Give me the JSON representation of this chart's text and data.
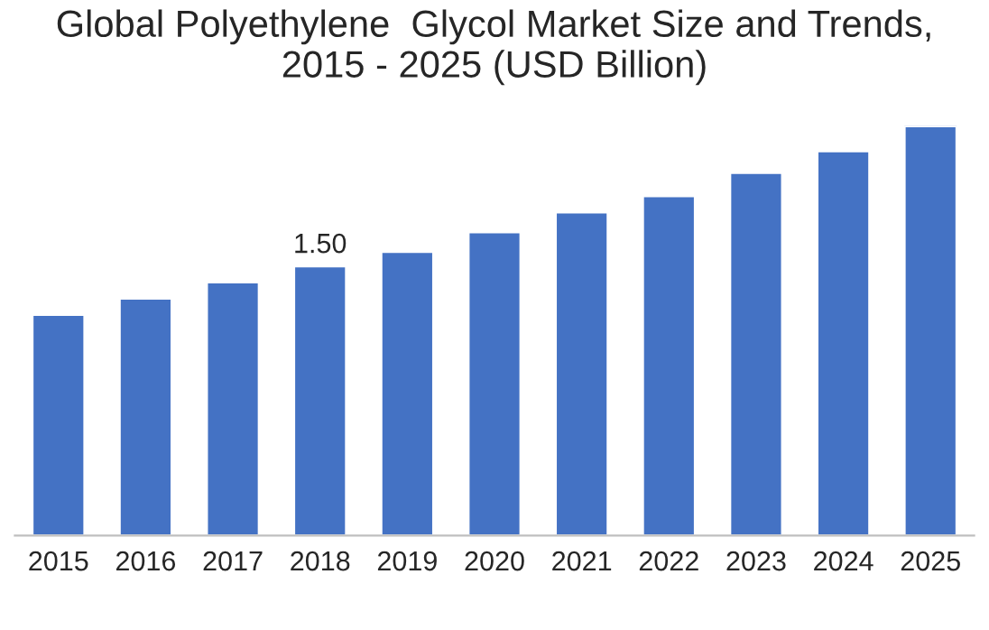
{
  "chart_data": {
    "type": "bar",
    "title": "Global Polyethylene  Glycol Market Size and Trends,\n2015 - 2025 (USD Billion)",
    "categories": [
      "2015",
      "2016",
      "2017",
      "2018",
      "2019",
      "2020",
      "2021",
      "2022",
      "2023",
      "2024",
      "2025"
    ],
    "values": [
      1.23,
      1.32,
      1.41,
      1.5,
      1.58,
      1.69,
      1.8,
      1.89,
      2.02,
      2.14,
      2.28
    ],
    "value_labels": [
      null,
      null,
      null,
      "1.50",
      null,
      null,
      null,
      null,
      null,
      null,
      null
    ],
    "color": "#4472c4",
    "grid": false,
    "legend": false
  }
}
